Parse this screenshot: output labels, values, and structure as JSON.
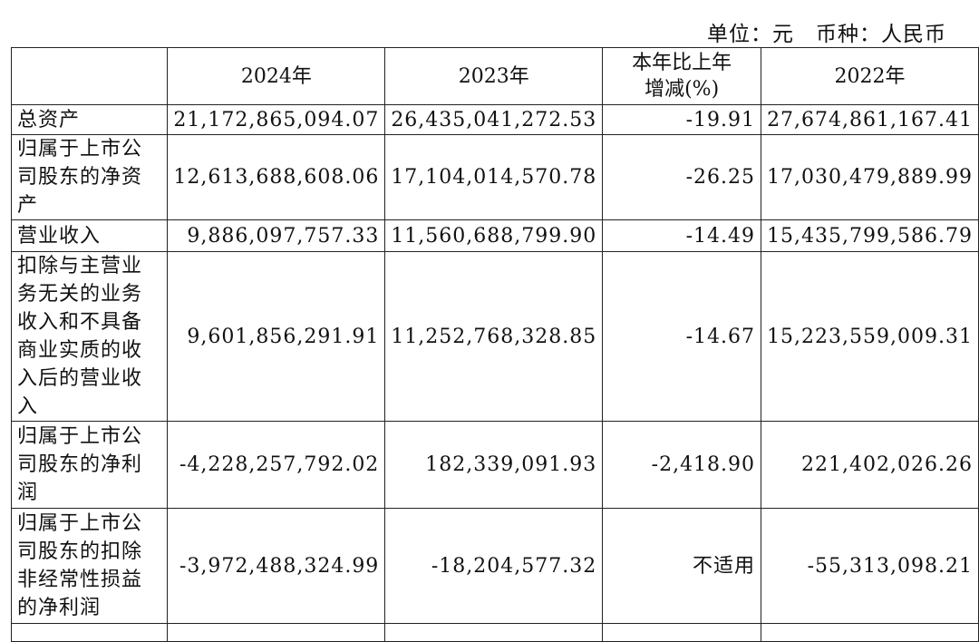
{
  "header": {
    "unit_note": "单位：元　币种：人民币"
  },
  "table": {
    "columns": [
      "",
      "2024年",
      "2023年",
      "本年比上年增减(%)",
      "2022年"
    ],
    "rows": [
      [
        "总资产",
        "21,172,865,094.07",
        "26,435,041,272.53",
        "-19.91",
        "27,674,861,167.41"
      ],
      [
        "归属于上市公司股东的净资产",
        "12,613,688,608.06",
        "17,104,014,570.78",
        "-26.25",
        "17,030,479,889.99"
      ],
      [
        "营业收入",
        "9,886,097,757.33",
        "11,560,688,799.90",
        "-14.49",
        "15,435,799,586.79"
      ],
      [
        "扣除与主营业务无关的业务收入和不具备商业实质的收入后的营业收入",
        "9,601,856,291.91",
        "11,252,768,328.85",
        "-14.67",
        "15,223,559,009.31"
      ],
      [
        "归属于上市公司股东的净利润",
        "-4,228,257,792.02",
        "182,339,091.93",
        "-2,418.90",
        "221,402,026.26"
      ],
      [
        "归属于上市公司股东的扣除非经常性损益的净利润",
        "-3,972,488,324.99",
        "-18,204,577.32",
        "不适用",
        "-55,313,098.21"
      ]
    ]
  }
}
